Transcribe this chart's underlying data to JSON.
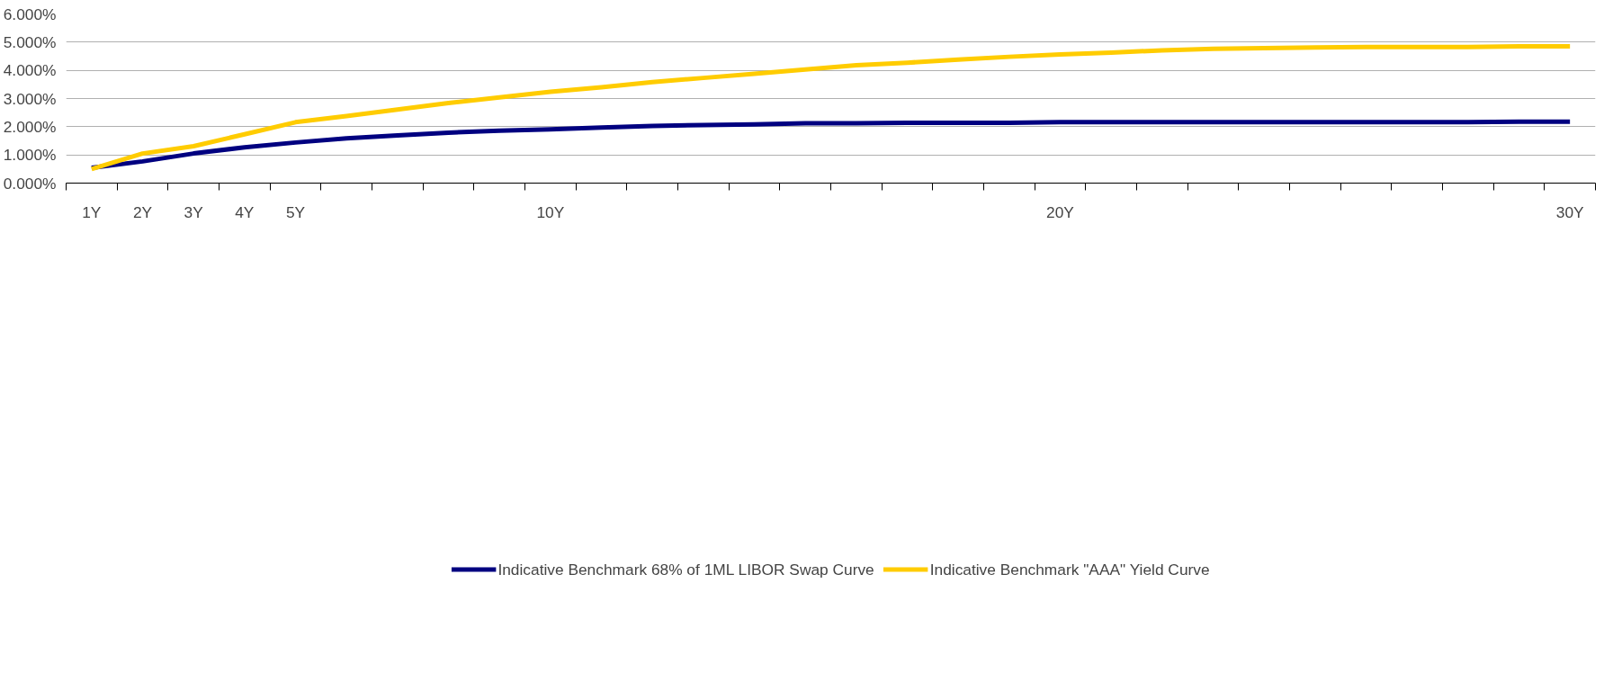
{
  "chart_data": {
    "type": "line",
    "categories": [
      "1Y",
      "2Y",
      "3Y",
      "4Y",
      "5Y",
      null,
      null,
      null,
      null,
      "10Y",
      null,
      null,
      null,
      null,
      null,
      null,
      null,
      null,
      null,
      "20Y",
      null,
      null,
      null,
      null,
      null,
      null,
      null,
      null,
      null,
      "30Y"
    ],
    "series": [
      {
        "name": "Indicative Benchmark 68% of 1ML LIBOR Swap Curve",
        "color": "#000080",
        "values": [
          0.54,
          0.77,
          1.05,
          1.27,
          1.44,
          1.59,
          1.69,
          1.79,
          1.86,
          1.91,
          1.97,
          2.03,
          2.06,
          2.08,
          2.12,
          2.12,
          2.14,
          2.14,
          2.14,
          2.16,
          2.16,
          2.16,
          2.16,
          2.16,
          2.16,
          2.16,
          2.16,
          2.16,
          2.18,
          2.18
        ]
      },
      {
        "name": "Indicative Benchmark \"AAA\" Yield Curve",
        "color": "#ffcc00",
        "values": [
          0.5,
          1.05,
          1.31,
          1.73,
          2.16,
          2.38,
          2.61,
          2.84,
          3.04,
          3.24,
          3.4,
          3.58,
          3.73,
          3.88,
          4.03,
          4.18,
          4.27,
          4.38,
          4.48,
          4.56,
          4.63,
          4.71,
          4.76,
          4.79,
          4.81,
          4.83,
          4.83,
          4.83,
          4.85,
          4.85
        ]
      }
    ],
    "ylim": [
      0,
      6
    ],
    "yticks": [
      {
        "value": 0,
        "label": "0.000%"
      },
      {
        "value": 1,
        "label": "1.000%"
      },
      {
        "value": 2,
        "label": "2.000%"
      },
      {
        "value": 3,
        "label": "3.000%"
      },
      {
        "value": 4,
        "label": "4.000%"
      },
      {
        "value": 5,
        "label": "5.000%"
      },
      {
        "value": 6,
        "label": "6.000%"
      }
    ],
    "grid": "y",
    "legend": "bottom",
    "marker": "none",
    "line_style": "solid"
  }
}
